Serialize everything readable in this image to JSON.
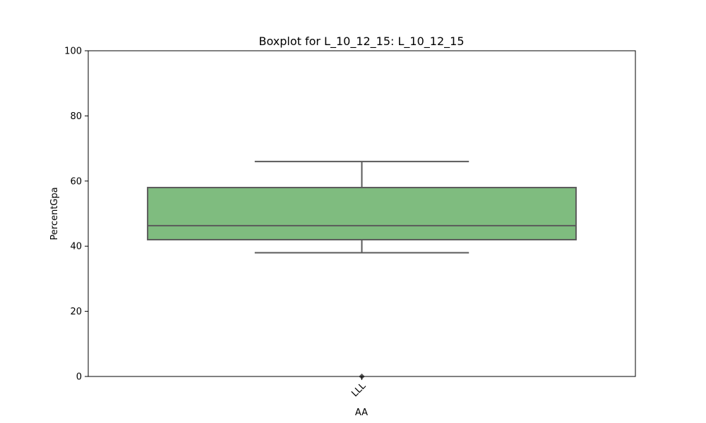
{
  "chart_data": {
    "type": "box",
    "title": "Boxplot for L_10_12_15: L_10_12_15",
    "xlabel": "AA",
    "ylabel": "PercentGpa",
    "ylim": [
      0,
      100
    ],
    "yticks": [
      0,
      20,
      40,
      60,
      80,
      100
    ],
    "categories": [
      "LLL"
    ],
    "boxes": [
      {
        "category": "LLL",
        "whisker_low": 38,
        "q1": 42,
        "median": 46.3,
        "q3": 58,
        "whisker_high": 66,
        "outliers": [
          0
        ]
      }
    ],
    "grid": false,
    "legend": "none",
    "colors": {
      "box_fill": "#7fbc7f",
      "box_line": "#5a5a5a"
    }
  }
}
